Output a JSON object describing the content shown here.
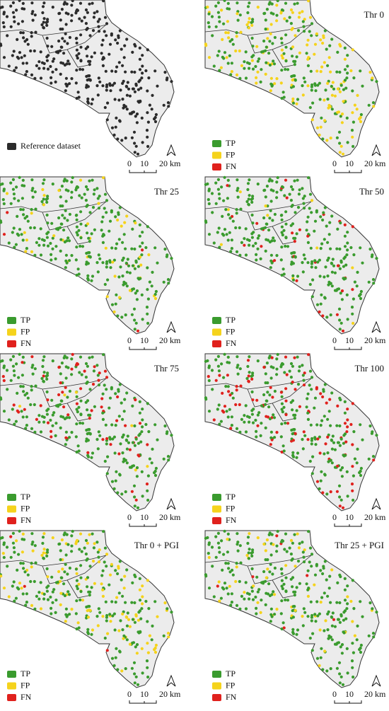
{
  "panels": [
    {
      "legend": [
        {
          "label": "Reference dataset",
          "color": "#2b2b2b"
        }
      ],
      "scale": [
        "0",
        "10",
        "20 km"
      ]
    },
    {
      "title": "Thr 0",
      "legend": [
        {
          "label": "TP",
          "color": "#3a9b2e"
        },
        {
          "label": "FP",
          "color": "#f5d31c"
        },
        {
          "label": "FN",
          "color": "#e0211d"
        }
      ],
      "scale": [
        "0",
        "10",
        "20 km"
      ]
    },
    {
      "title": "Thr 25",
      "legend": [
        {
          "label": "TP",
          "color": "#3a9b2e"
        },
        {
          "label": "FP",
          "color": "#f5d31c"
        },
        {
          "label": "FN",
          "color": "#e0211d"
        }
      ],
      "scale": [
        "0",
        "10",
        "20 km"
      ]
    },
    {
      "title": "Thr 50",
      "legend": [
        {
          "label": "TP",
          "color": "#3a9b2e"
        },
        {
          "label": "FP",
          "color": "#f5d31c"
        },
        {
          "label": "FN",
          "color": "#e0211d"
        }
      ],
      "scale": [
        "0",
        "10",
        "20 km"
      ]
    },
    {
      "title": "Thr 75",
      "legend": [
        {
          "label": "TP",
          "color": "#3a9b2e"
        },
        {
          "label": "FP",
          "color": "#f5d31c"
        },
        {
          "label": "FN",
          "color": "#e0211d"
        }
      ],
      "scale": [
        "0",
        "10",
        "20 km"
      ]
    },
    {
      "title": "Thr 100",
      "legend": [
        {
          "label": "TP",
          "color": "#3a9b2e"
        },
        {
          "label": "FP",
          "color": "#f5d31c"
        },
        {
          "label": "FN",
          "color": "#e0211d"
        }
      ],
      "scale": [
        "0",
        "10",
        "20 km"
      ]
    },
    {
      "title": "Thr 0 + PGI",
      "legend": [
        {
          "label": "TP",
          "color": "#3a9b2e"
        },
        {
          "label": "FP",
          "color": "#f5d31c"
        },
        {
          "label": "FN",
          "color": "#e0211d"
        }
      ],
      "scale": [
        "0",
        "10",
        "20 km"
      ]
    },
    {
      "title": "Thr 25 + PGI",
      "legend": [
        {
          "label": "TP",
          "color": "#3a9b2e"
        },
        {
          "label": "FP",
          "color": "#f5d31c"
        },
        {
          "label": "FN",
          "color": "#e0211d"
        }
      ],
      "scale": [
        "0",
        "10",
        "20 km"
      ]
    }
  ]
}
